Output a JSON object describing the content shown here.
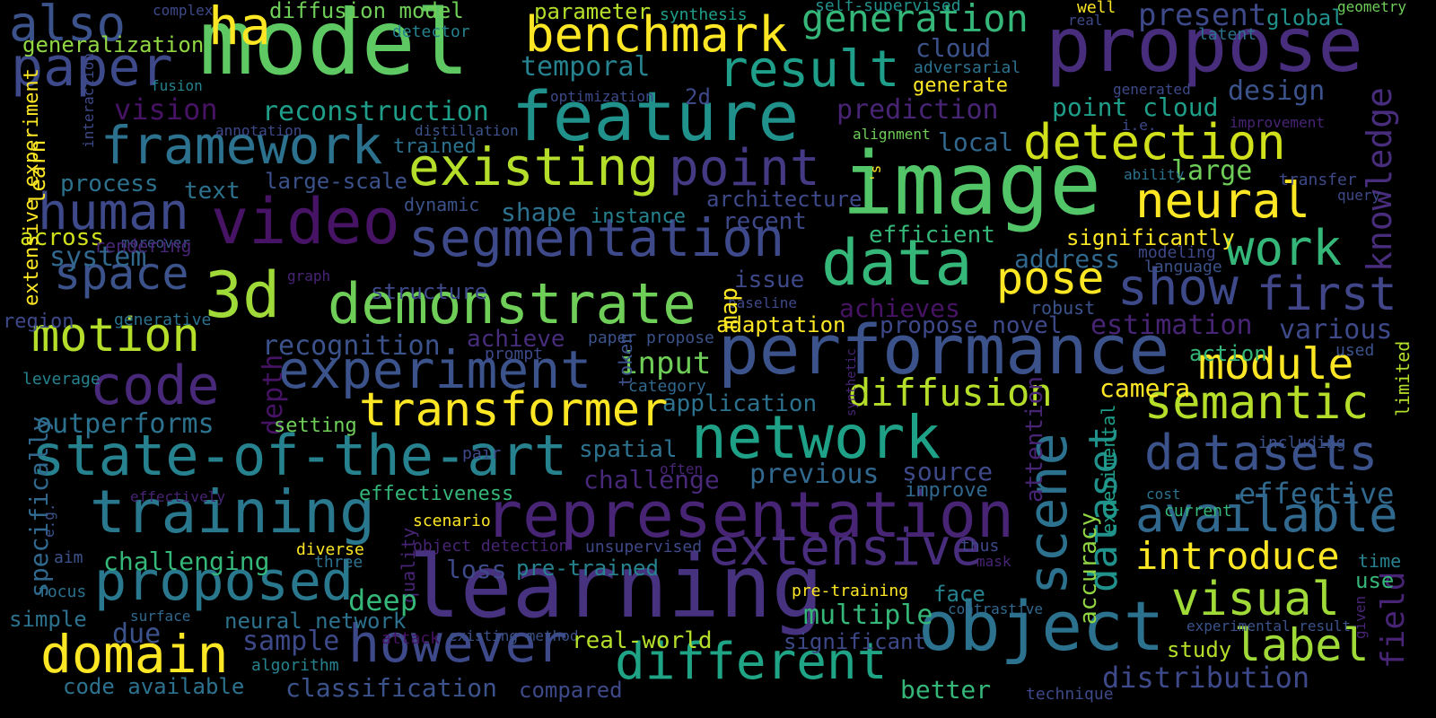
{
  "palette": {
    "background": "#000000",
    "purple": "#482878",
    "indigo": "#3e4989",
    "blue": "#31688e",
    "teal": "#26828e",
    "green": "#35b779",
    "mint": "#6ece58",
    "lime": "#b5de2b",
    "yellow": "#fde725"
  },
  "words": [
    {
      "text": "model",
      "color": "#5ec962"
    },
    {
      "text": "image",
      "color": "#52c569"
    },
    {
      "text": "learning",
      "color": "#46327e"
    },
    {
      "text": "propose",
      "color": "#472d7b"
    },
    {
      "text": "performance",
      "color": "#3b528b"
    },
    {
      "text": "feature",
      "color": "#21918c"
    },
    {
      "text": "object",
      "color": "#2c728e"
    },
    {
      "text": "representation",
      "color": "#482475"
    },
    {
      "text": "video",
      "color": "#471365"
    },
    {
      "text": "data",
      "color": "#35b779"
    },
    {
      "text": "3d",
      "color": "#a0da39"
    },
    {
      "text": "training",
      "color": "#2a788e"
    },
    {
      "text": "network",
      "color": "#1fa187"
    },
    {
      "text": "state-of-the-art",
      "color": "#26828e"
    },
    {
      "text": "demonstrate",
      "color": "#6ece58"
    },
    {
      "text": "segmentation",
      "color": "#3e4989"
    },
    {
      "text": "existing",
      "color": "#b5de2b"
    },
    {
      "text": "experiment",
      "color": "#3b528b"
    },
    {
      "text": "different",
      "color": "#20a486"
    },
    {
      "text": "extensive",
      "color": "#472d7b"
    },
    {
      "text": "domain",
      "color": "#fde725"
    },
    {
      "text": "however",
      "color": "#3e4989"
    },
    {
      "text": "proposed",
      "color": "#2a788e"
    },
    {
      "text": "result",
      "color": "#1f9e89"
    },
    {
      "text": "benchmark",
      "color": "#fde725"
    },
    {
      "text": "detection",
      "color": "#d0e11c"
    },
    {
      "text": "available",
      "color": "#31688e"
    },
    {
      "text": "datasets",
      "color": "#3b528b"
    },
    {
      "text": "framework",
      "color": "#2c728e"
    },
    {
      "text": "transformer",
      "color": "#fde725"
    },
    {
      "text": "point",
      "color": "#443983"
    },
    {
      "text": "neural",
      "color": "#fde725"
    },
    {
      "text": "work",
      "color": "#35b779"
    },
    {
      "text": "show",
      "color": "#3e4989"
    },
    {
      "text": "first",
      "color": "#404688"
    },
    {
      "text": "semantic",
      "color": "#b5de2b"
    },
    {
      "text": "visual",
      "color": "#a0da39"
    },
    {
      "text": "introduce",
      "color": "#fde725"
    },
    {
      "text": "label",
      "color": "#a0da39"
    },
    {
      "text": "module",
      "color": "#fde725"
    },
    {
      "text": "pose",
      "color": "#fde725"
    },
    {
      "text": "diffusion",
      "color": "#b5de2b"
    },
    {
      "text": "motion",
      "color": "#b5de2b"
    },
    {
      "text": "code",
      "color": "#482878"
    },
    {
      "text": "space",
      "color": "#3b528b"
    },
    {
      "text": "human",
      "color": "#3e4989"
    },
    {
      "text": "paper",
      "color": "#3e4989"
    },
    {
      "text": "also",
      "color": "#3b528b"
    },
    {
      "text": "ha",
      "color": "#fde725"
    },
    {
      "text": "generation",
      "color": "#35b779"
    },
    {
      "text": "dataset",
      "color": "#21918c"
    },
    {
      "text": "scene",
      "color": "#2c728e"
    },
    {
      "text": "knowledge",
      "color": "#472d7b"
    },
    {
      "text": "field",
      "color": "#482475"
    },
    {
      "text": "distribution",
      "color": "#3e4989"
    },
    {
      "text": "effective",
      "color": "#31688e"
    },
    {
      "text": "various",
      "color": "#3e4989"
    },
    {
      "text": "estimation",
      "color": "#482475"
    },
    {
      "text": "design",
      "color": "#3b528b"
    },
    {
      "text": "large",
      "color": "#6ece58"
    },
    {
      "text": "present",
      "color": "#3e4989"
    },
    {
      "text": "global",
      "color": "#21918c"
    },
    {
      "text": "point cloud",
      "color": "#1f9e89"
    },
    {
      "text": "local",
      "color": "#31688e"
    },
    {
      "text": "prediction",
      "color": "#482475"
    },
    {
      "text": "reconstruction",
      "color": "#1f9e89"
    },
    {
      "text": "temporal",
      "color": "#26828e"
    },
    {
      "text": "vision",
      "color": "#471365"
    },
    {
      "text": "cloud",
      "color": "#3b528b"
    },
    {
      "text": "generate",
      "color": "#fde725"
    },
    {
      "text": "adversarial",
      "color": "#2c728e"
    },
    {
      "text": "self-supervised",
      "color": "#21918c"
    },
    {
      "text": "diffusion model",
      "color": "#6ece58"
    },
    {
      "text": "parameter",
      "color": "#b5de2b"
    },
    {
      "text": "synthesis",
      "color": "#1f9e89"
    },
    {
      "text": "generalization",
      "color": "#90d743"
    },
    {
      "text": "detector",
      "color": "#26828e"
    },
    {
      "text": "complex",
      "color": "#3e4989"
    },
    {
      "text": "fusion",
      "color": "#26828e"
    },
    {
      "text": "learn",
      "color": "#fde725"
    },
    {
      "text": "annotation",
      "color": "#3e4989"
    },
    {
      "text": "distillation",
      "color": "#3b528b"
    },
    {
      "text": "trained",
      "color": "#2c728e"
    },
    {
      "text": "text",
      "color": "#2c728e"
    },
    {
      "text": "process",
      "color": "#2c728e"
    },
    {
      "text": "large-scale",
      "color": "#3b528b"
    },
    {
      "text": "dynamic",
      "color": "#3b528b"
    },
    {
      "text": "shape",
      "color": "#2c728e"
    },
    {
      "text": "instance",
      "color": "#26828e"
    },
    {
      "text": "architecture",
      "color": "#3e4989"
    },
    {
      "text": "recent",
      "color": "#3e4989"
    },
    {
      "text": "efficient",
      "color": "#35b779"
    },
    {
      "text": "significantly",
      "color": "#fde725"
    },
    {
      "text": "address",
      "color": "#31688e"
    },
    {
      "text": "modeling",
      "color": "#3e4989"
    },
    {
      "text": "language",
      "color": "#3b528b"
    },
    {
      "text": "across",
      "color": "#d0e11c"
    },
    {
      "text": "moreover",
      "color": "#3b528b"
    },
    {
      "text": "extensive experiment",
      "color": "#fde725"
    },
    {
      "text": "interaction",
      "color": "#3e4989"
    },
    {
      "text": "system",
      "color": "#31688e"
    },
    {
      "text": "rendering",
      "color": "#482475"
    },
    {
      "text": "graph",
      "color": "#482475"
    },
    {
      "text": "structure",
      "color": "#3e4989"
    },
    {
      "text": "issue",
      "color": "#3e4989"
    },
    {
      "text": "achieves",
      "color": "#471365"
    },
    {
      "text": "robust",
      "color": "#3b528b"
    },
    {
      "text": "region",
      "color": "#3e4989"
    },
    {
      "text": "generative",
      "color": "#2c728e"
    },
    {
      "text": "baseline",
      "color": "#3e4989"
    },
    {
      "text": "map",
      "color": "#fde725"
    },
    {
      "text": "adaptation",
      "color": "#fde725"
    },
    {
      "text": "propose novel",
      "color": "#3e4989"
    },
    {
      "text": "action",
      "color": "#35b779"
    },
    {
      "text": "used",
      "color": "#3b528b"
    },
    {
      "text": "recognition",
      "color": "#3b528b"
    },
    {
      "text": "achieve",
      "color": "#472d7b"
    },
    {
      "text": "paper propose",
      "color": "#3b528b"
    },
    {
      "text": "prompt",
      "color": "#3e4989"
    },
    {
      "text": "input",
      "color": "#6ece58"
    },
    {
      "text": "leverage",
      "color": "#26828e"
    },
    {
      "text": "depth",
      "color": "#471365"
    },
    {
      "text": "camera",
      "color": "#fde725"
    },
    {
      "text": "token",
      "color": "#3b528b"
    },
    {
      "text": "category",
      "color": "#31688e"
    },
    {
      "text": "synthetic",
      "color": "#482475"
    },
    {
      "text": "application",
      "color": "#2c728e"
    },
    {
      "text": "outperforms",
      "color": "#2c728e"
    },
    {
      "text": "setting",
      "color": "#6ece58"
    },
    {
      "text": "specifically",
      "color": "#31688e"
    },
    {
      "text": "limited",
      "color": "#b5de2b"
    },
    {
      "text": "including",
      "color": "#3b528b"
    },
    {
      "text": "spatial",
      "color": "#2c728e"
    },
    {
      "text": "pair",
      "color": "#3e4989"
    },
    {
      "text": "experimental",
      "color": "#1f9e89"
    },
    {
      "text": "previous",
      "color": "#31688e"
    },
    {
      "text": "source",
      "color": "#3e4989"
    },
    {
      "text": "often",
      "color": "#482475"
    },
    {
      "text": "challenge",
      "color": "#482878"
    },
    {
      "text": "improve",
      "color": "#31688e"
    },
    {
      "text": "cost",
      "color": "#2c728e"
    },
    {
      "text": "attention",
      "color": "#482475"
    },
    {
      "text": "effectiveness",
      "color": "#35b779"
    },
    {
      "text": "effectively",
      "color": "#482475"
    },
    {
      "text": "current",
      "color": "#35b779"
    },
    {
      "text": "accuracy",
      "color": "#90d743"
    },
    {
      "text": "e.g.",
      "color": "#3b528b"
    },
    {
      "text": "scenario",
      "color": "#fde725"
    },
    {
      "text": "quality",
      "color": "#482475"
    },
    {
      "text": "time",
      "color": "#26828e"
    },
    {
      "text": "challenging",
      "color": "#35b779"
    },
    {
      "text": "diverse",
      "color": "#fde725"
    },
    {
      "text": "object detection",
      "color": "#482475"
    },
    {
      "text": "unsupervised",
      "color": "#3e4989"
    },
    {
      "text": "three",
      "color": "#2c728e"
    },
    {
      "text": "aim",
      "color": "#3b528b"
    },
    {
      "text": "thus",
      "color": "#3e4989"
    },
    {
      "text": "mask",
      "color": "#482475"
    },
    {
      "text": "loss",
      "color": "#3e4989"
    },
    {
      "text": "pre-trained",
      "color": "#26828e"
    },
    {
      "text": "use",
      "color": "#35b779"
    },
    {
      "text": "given",
      "color": "#482475"
    },
    {
      "text": "focus",
      "color": "#2c728e"
    },
    {
      "text": "pre-training",
      "color": "#fde725"
    },
    {
      "text": "face",
      "color": "#26828e"
    },
    {
      "text": "deep",
      "color": "#35b779"
    },
    {
      "text": "simple",
      "color": "#2c728e"
    },
    {
      "text": "surface",
      "color": "#31688e"
    },
    {
      "text": "neural network",
      "color": "#2c728e"
    },
    {
      "text": "multiple",
      "color": "#35b779"
    },
    {
      "text": "contrastive",
      "color": "#31688e"
    },
    {
      "text": "experimental result",
      "color": "#3b528b"
    },
    {
      "text": "due",
      "color": "#3b528b"
    },
    {
      "text": "sample",
      "color": "#3e4989"
    },
    {
      "text": "attack",
      "color": "#471365"
    },
    {
      "text": "existing method",
      "color": "#3b528b"
    },
    {
      "text": "real-world",
      "color": "#b5de2b"
    },
    {
      "text": "significant",
      "color": "#3e4989"
    },
    {
      "text": "study",
      "color": "#b5de2b"
    },
    {
      "text": "algorithm",
      "color": "#26828e"
    },
    {
      "text": "code available",
      "color": "#2c728e"
    },
    {
      "text": "classification",
      "color": "#3b528b"
    },
    {
      "text": "compared",
      "color": "#3e4989"
    },
    {
      "text": "better",
      "color": "#35b779"
    },
    {
      "text": "technique",
      "color": "#3e4989"
    },
    {
      "text": "well",
      "color": "#fde725"
    },
    {
      "text": "real",
      "color": "#3e4989"
    },
    {
      "text": "latent",
      "color": "#2c728e"
    },
    {
      "text": "geometry",
      "color": "#6ece58"
    },
    {
      "text": "generated",
      "color": "#3e4989"
    },
    {
      "text": "i.e.",
      "color": "#3e4989"
    },
    {
      "text": "improvement",
      "color": "#482475"
    },
    {
      "text": "optimization",
      "color": "#3e4989"
    },
    {
      "text": "2d",
      "color": "#3e4989"
    },
    {
      "text": "alignment",
      "color": "#6ece58"
    },
    {
      "text": "'s",
      "color": "#fde725"
    },
    {
      "text": "ability",
      "color": "#2c728e"
    },
    {
      "text": "transfer",
      "color": "#3e4989"
    },
    {
      "text": "query",
      "color": "#3e4989"
    }
  ]
}
